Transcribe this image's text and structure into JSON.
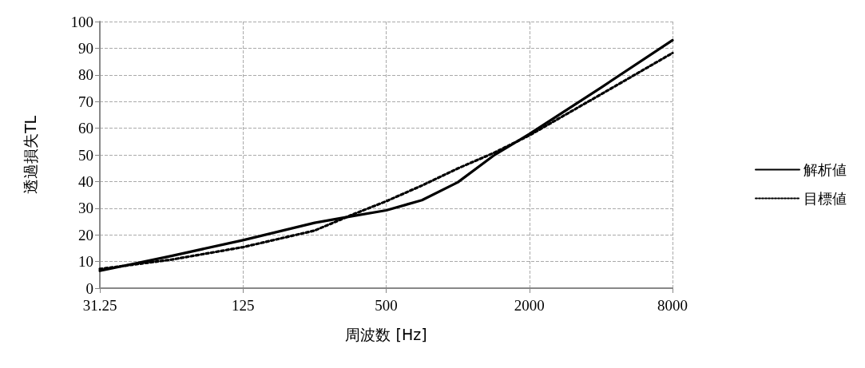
{
  "chart_data": {
    "type": "line",
    "xlabel": "周波数 [Hz]",
    "ylabel": "透過損失TL",
    "log": "x",
    "x": [
      31.25,
      62.5,
      125,
      250,
      354,
      500,
      707,
      1000,
      1414,
      2000,
      4000,
      8000
    ],
    "xlim": [
      31.25,
      8000
    ],
    "xticks": [
      31.25,
      125,
      500,
      2000,
      8000
    ],
    "ylim": [
      0,
      100
    ],
    "yticks": [
      0,
      10,
      20,
      30,
      40,
      50,
      60,
      70,
      80,
      90,
      100
    ],
    "grid": true,
    "legend": "right",
    "marker": "none",
    "series": [
      {
        "name": "解析値",
        "color": "#000000",
        "line_style": "solid",
        "values": [
          6.5,
          12.1,
          18,
          24.5,
          26.9,
          29.2,
          33,
          39.7,
          49.7,
          57.8,
          75.2,
          93
        ]
      },
      {
        "name": "目標値",
        "color": "#000000",
        "line_style": "dotted",
        "values": [
          7.2,
          10.7,
          15.4,
          21.6,
          27.3,
          32.6,
          38.5,
          44.9,
          50.7,
          57.3,
          72.7,
          88.2
        ]
      }
    ]
  }
}
